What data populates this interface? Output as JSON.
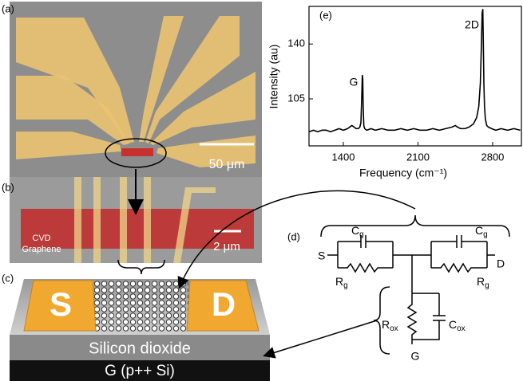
{
  "panels": {
    "a": {
      "label": "(a)",
      "scale": "50 μm"
    },
    "b": {
      "label": "(b)",
      "scale": "2 μm",
      "material": [
        "CVD",
        "Graphene"
      ]
    },
    "c": {
      "label": "(c)",
      "source": "S",
      "drain": "D",
      "oxide": "Silicon dioxide",
      "gate": "G (p++ Si)"
    },
    "d": {
      "label": "(d)",
      "source": "S",
      "drain": "D",
      "gate": "G",
      "cg_left": {
        "main": "C",
        "sub": "g"
      },
      "cg_right": {
        "main": "C",
        "sub": "g"
      },
      "rg_left": {
        "main": "R",
        "sub": "g"
      },
      "rg_right": {
        "main": "R",
        "sub": "g"
      },
      "rox": {
        "main": "R",
        "sub": "ox"
      },
      "cox": {
        "main": "C",
        "sub": "ox"
      }
    }
  },
  "chart_data": {
    "type": "line",
    "label": "(e)",
    "xlabel": "Frequency (cm⁻¹)",
    "ylabel": "Intensity (au)",
    "annotations": [
      "G",
      "2D"
    ],
    "color": "#000000",
    "x": [
      1080,
      1120,
      1160,
      1200,
      1240,
      1280,
      1320,
      1360,
      1400,
      1440,
      1480,
      1500,
      1520,
      1540,
      1555,
      1565,
      1572,
      1578,
      1582,
      1586,
      1592,
      1600,
      1620,
      1660,
      1700,
      1760,
      1820,
      1880,
      1940,
      2000,
      2060,
      2120,
      2180,
      2240,
      2300,
      2360,
      2420,
      2450,
      2470,
      2500,
      2540,
      2580,
      2620,
      2650,
      2670,
      2685,
      2695,
      2702,
      2708,
      2712,
      2718,
      2724,
      2732,
      2745,
      2760,
      2790,
      2830,
      2880,
      2940,
      3000,
      3060
    ],
    "values": [
      84,
      85,
      84,
      85,
      85,
      84,
      85,
      86,
      85,
      86,
      88,
      87,
      86,
      86,
      87,
      90,
      105,
      120,
      118,
      100,
      88,
      86,
      85,
      86,
      85,
      86,
      85,
      85,
      86,
      85,
      86,
      85,
      85,
      86,
      85,
      86,
      87,
      88,
      87,
      86,
      86,
      87,
      89,
      93,
      100,
      115,
      140,
      160,
      162,
      145,
      115,
      100,
      92,
      88,
      87,
      86,
      85,
      86,
      85,
      86,
      85
    ],
    "xlim": [
      1078,
      3070
    ],
    "ylim": [
      75,
      164
    ],
    "xticks": [
      1400,
      2100,
      2800
    ],
    "yticks": [
      105,
      140
    ]
  }
}
